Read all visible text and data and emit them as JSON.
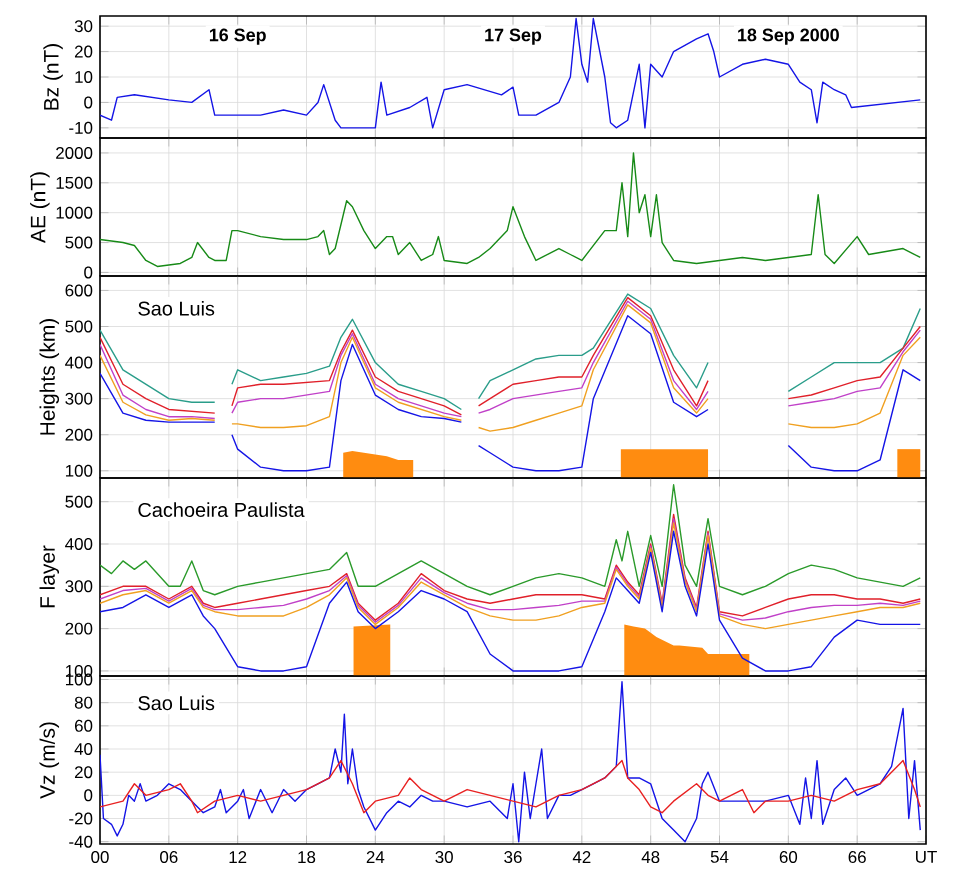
{
  "chart_data": [
    {
      "type": "line",
      "ylabel": "Bz (nT)",
      "xlim": [
        0,
        72
      ],
      "ylim": [
        -14,
        34
      ],
      "grid": true,
      "tick_labels": "y",
      "xticks": [
        {
          "value": 0,
          "label": null
        },
        {
          "value": 6,
          "label": null
        },
        {
          "value": 12,
          "label": null
        },
        {
          "value": 18,
          "label": null
        },
        {
          "value": 24,
          "label": null
        },
        {
          "value": 30,
          "label": null
        },
        {
          "value": 36,
          "label": null
        },
        {
          "value": 42,
          "label": null
        },
        {
          "value": 48,
          "label": null
        },
        {
          "value": 54,
          "label": null
        },
        {
          "value": 60,
          "label": null
        },
        {
          "value": 66,
          "label": null
        },
        {
          "value": 72,
          "label": null
        }
      ],
      "yticks": [
        -10,
        0,
        10,
        20,
        30
      ],
      "annotations": [
        "16 Sep",
        "17 Sep",
        "18 Sep 2000"
      ],
      "series": [
        {
          "color": "#1414e6",
          "x": [
            0,
            1,
            1.5,
            3,
            6,
            8,
            9.5,
            10,
            12,
            14,
            16,
            18,
            19,
            19.5,
            20.5,
            21,
            24,
            24.5,
            25,
            27,
            28.5,
            29,
            30,
            32,
            35,
            36,
            36.5,
            38,
            40,
            41,
            41.5,
            42,
            42.5,
            43,
            44,
            44.5,
            45,
            46,
            47,
            47.5,
            48,
            49,
            50,
            52,
            53,
            53.5,
            54,
            56,
            58,
            60,
            61,
            62,
            62.5,
            63,
            64,
            65,
            65.5,
            71.5
          ],
          "values": [
            -5,
            -7,
            2,
            3,
            1,
            0,
            5,
            -5,
            -5,
            -5,
            -3,
            -5,
            0,
            7,
            -7,
            -10,
            -10,
            8,
            -5,
            -2,
            2,
            -10,
            5,
            7,
            3,
            6,
            -5,
            -5,
            0,
            10,
            33,
            15,
            8,
            33,
            10,
            -8,
            -10,
            -7,
            15,
            -10,
            15,
            10,
            20,
            25,
            27,
            20,
            10,
            15,
            17,
            15,
            8,
            5,
            -8,
            8,
            5,
            3,
            -2,
            1
          ]
        }
      ]
    },
    {
      "type": "line",
      "ylabel": "AE (nT)",
      "xlim": [
        0,
        72
      ],
      "ylim": [
        -60,
        2250
      ],
      "grid": true,
      "tick_labels": "y",
      "xticks": [
        {
          "value": 0,
          "label": null
        },
        {
          "value": 6,
          "label": null
        },
        {
          "value": 12,
          "label": null
        },
        {
          "value": 18,
          "label": null
        },
        {
          "value": 24,
          "label": null
        },
        {
          "value": 30,
          "label": null
        },
        {
          "value": 36,
          "label": null
        },
        {
          "value": 42,
          "label": null
        },
        {
          "value": 48,
          "label": null
        },
        {
          "value": 54,
          "label": null
        },
        {
          "value": 60,
          "label": null
        },
        {
          "value": 66,
          "label": null
        },
        {
          "value": 72,
          "label": null
        }
      ],
      "yticks": [
        0,
        500,
        1000,
        1500,
        2000
      ],
      "series": [
        {
          "color": "#178a17",
          "x": [
            0,
            2,
            3,
            4,
            5,
            7,
            8,
            8.5,
            9.5,
            10,
            11,
            11.5,
            12,
            14,
            16,
            18,
            19,
            19.5,
            20,
            20.5,
            21.5,
            22,
            23,
            24,
            25,
            25.5,
            26,
            27,
            28,
            29,
            29.5,
            30,
            32,
            33,
            34,
            35.5,
            36,
            37,
            38,
            40,
            41,
            42,
            44,
            45,
            45.5,
            46,
            46.5,
            47,
            47.5,
            48,
            48.5,
            49,
            50,
            52,
            54,
            56,
            58,
            60,
            62,
            62.6,
            63.2,
            64,
            66,
            67,
            70,
            71.5
          ],
          "values": [
            550,
            500,
            450,
            200,
            100,
            150,
            250,
            500,
            250,
            200,
            200,
            700,
            700,
            600,
            550,
            550,
            600,
            700,
            300,
            400,
            1200,
            1100,
            700,
            400,
            600,
            600,
            300,
            500,
            200,
            300,
            600,
            200,
            150,
            250,
            400,
            700,
            1100,
            600,
            200,
            400,
            300,
            200,
            700,
            700,
            1500,
            600,
            2000,
            1000,
            1300,
            600,
            1300,
            500,
            200,
            150,
            200,
            250,
            200,
            250,
            300,
            1300,
            300,
            150,
            600,
            300,
            400,
            250
          ]
        }
      ]
    },
    {
      "type": "line",
      "title": "Sao Luis",
      "ylabel": "Heights (km)",
      "xlim": [
        0,
        72
      ],
      "ylim": [
        80,
        640
      ],
      "grid": true,
      "tick_labels": "y",
      "xticks": [
        {
          "value": 0,
          "label": null
        },
        {
          "value": 6,
          "label": null
        },
        {
          "value": 12,
          "label": null
        },
        {
          "value": 18,
          "label": null
        },
        {
          "value": 24,
          "label": null
        },
        {
          "value": 30,
          "label": null
        },
        {
          "value": 36,
          "label": null
        },
        {
          "value": 42,
          "label": null
        },
        {
          "value": 48,
          "label": null
        },
        {
          "value": 54,
          "label": null
        },
        {
          "value": 60,
          "label": null
        },
        {
          "value": 66,
          "label": null
        },
        {
          "value": 72,
          "label": null
        }
      ],
      "yticks": [
        100,
        200,
        300,
        400,
        500,
        600
      ],
      "series": [
        {
          "type": "area",
          "color": "#ff8c10",
          "x": [
            21.2,
            22,
            23,
            24,
            25,
            26,
            27.3
          ],
          "values": [
            150,
            155,
            150,
            145,
            140,
            130,
            130
          ]
        },
        {
          "type": "area",
          "color": "#ff8c10",
          "x": [
            45.4,
            47,
            49,
            51,
            53
          ],
          "values": [
            160,
            160,
            160,
            160,
            160
          ]
        },
        {
          "type": "area",
          "color": "#ff8c10",
          "x": [
            69.5,
            71.5
          ],
          "values": [
            160,
            160
          ]
        },
        {
          "color": "#2a9d8a",
          "x": [
            0,
            2,
            4,
            6,
            8,
            10,
            10.7,
            11.5,
            12,
            14,
            16,
            18,
            20,
            21,
            22,
            24,
            26,
            28,
            30,
            31.5,
            32.3,
            33,
            34,
            36,
            38,
            40,
            42,
            43,
            46,
            48,
            50,
            52,
            53,
            56,
            60,
            62,
            64,
            66,
            68,
            70,
            71.5
          ],
          "values": [
            490,
            380,
            340,
            300,
            290,
            290,
            null,
            340,
            380,
            350,
            360,
            370,
            390,
            470,
            520,
            400,
            340,
            320,
            300,
            270,
            null,
            300,
            350,
            380,
            410,
            420,
            420,
            440,
            590,
            550,
            420,
            330,
            400,
            null,
            320,
            360,
            400,
            400,
            400,
            440,
            550
          ]
        },
        {
          "color": "#e0202a",
          "x": [
            0,
            2,
            4,
            6,
            8,
            10,
            10.7,
            11.5,
            12,
            14,
            16,
            18,
            20,
            21,
            22,
            24,
            26,
            28,
            30,
            31.5,
            32.3,
            33,
            34,
            36,
            38,
            40,
            42,
            43,
            46,
            48,
            50,
            52,
            53,
            56,
            60,
            62,
            64,
            66,
            68,
            70,
            71.5
          ],
          "values": [
            470,
            340,
            300,
            270,
            265,
            260,
            null,
            280,
            330,
            340,
            340,
            345,
            350,
            430,
            490,
            360,
            320,
            300,
            280,
            255,
            null,
            280,
            300,
            340,
            350,
            360,
            360,
            420,
            580,
            530,
            380,
            280,
            350,
            null,
            300,
            310,
            330,
            350,
            360,
            440,
            500
          ]
        },
        {
          "color": "#c040c8",
          "x": [
            0,
            2,
            4,
            6,
            8,
            10,
            10.7,
            11.5,
            12,
            14,
            16,
            18,
            20,
            21,
            22,
            24,
            26,
            28,
            30,
            31.5,
            32.3,
            33,
            34,
            36,
            38,
            40,
            42,
            43,
            46,
            48,
            50,
            52,
            53,
            56,
            60,
            62,
            64,
            66,
            68,
            70,
            71.5
          ],
          "values": [
            450,
            310,
            270,
            250,
            250,
            245,
            null,
            260,
            290,
            300,
            300,
            310,
            320,
            420,
            480,
            340,
            300,
            280,
            260,
            250,
            null,
            260,
            270,
            300,
            310,
            320,
            330,
            400,
            570,
            520,
            350,
            270,
            320,
            null,
            280,
            290,
            300,
            320,
            330,
            430,
            490
          ]
        },
        {
          "color": "#f0a020",
          "x": [
            0,
            2,
            4,
            6,
            8,
            10,
            10.7,
            11.5,
            12,
            14,
            16,
            18,
            20,
            21,
            22,
            24,
            26,
            28,
            30,
            31.5,
            32.3,
            33,
            34,
            36,
            38,
            40,
            42,
            43,
            46,
            48,
            50,
            52,
            53,
            56,
            60,
            62,
            64,
            66,
            68,
            70,
            71.5
          ],
          "values": [
            420,
            290,
            255,
            240,
            245,
            240,
            null,
            230,
            230,
            220,
            220,
            225,
            250,
            400,
            470,
            330,
            290,
            270,
            250,
            240,
            null,
            220,
            210,
            220,
            240,
            260,
            280,
            380,
            560,
            510,
            330,
            260,
            300,
            null,
            230,
            220,
            220,
            230,
            260,
            420,
            470
          ]
        },
        {
          "color": "#1414e6",
          "x": [
            0,
            2,
            4,
            6,
            8,
            10,
            10.7,
            11.5,
            12,
            14,
            16,
            18,
            20,
            21,
            22,
            24,
            26,
            28,
            30,
            31.5,
            32.3,
            33,
            34,
            36,
            38,
            40,
            42,
            43,
            46,
            48,
            50,
            52,
            53,
            56,
            60,
            62,
            64,
            66,
            68,
            70,
            71.5
          ],
          "values": [
            370,
            260,
            240,
            235,
            235,
            235,
            null,
            200,
            160,
            110,
            100,
            100,
            110,
            350,
            450,
            310,
            270,
            250,
            245,
            235,
            null,
            170,
            150,
            110,
            100,
            100,
            110,
            300,
            530,
            480,
            290,
            250,
            270,
            null,
            170,
            110,
            100,
            100,
            130,
            380,
            350
          ]
        }
      ]
    },
    {
      "type": "line",
      "title": "Cachoeira Paulista",
      "ylabel": "F layer",
      "xlim": [
        0,
        72
      ],
      "ylim": [
        88,
        556
      ],
      "grid": true,
      "tick_labels": "y",
      "xticks": [
        {
          "value": 0,
          "label": null
        },
        {
          "value": 6,
          "label": null
        },
        {
          "value": 12,
          "label": null
        },
        {
          "value": 18,
          "label": null
        },
        {
          "value": 24,
          "label": null
        },
        {
          "value": 30,
          "label": null
        },
        {
          "value": 36,
          "label": null
        },
        {
          "value": 42,
          "label": null
        },
        {
          "value": 48,
          "label": null
        },
        {
          "value": 54,
          "label": null
        },
        {
          "value": 60,
          "label": null
        },
        {
          "value": 66,
          "label": null
        },
        {
          "value": 72,
          "label": null
        }
      ],
      "yticks": [
        100,
        200,
        300,
        400,
        500
      ],
      "series": [
        {
          "type": "area",
          "color": "#ff8c10",
          "x": [
            22.1,
            25.3
          ],
          "values": [
            205,
            210
          ]
        },
        {
          "type": "area",
          "color": "#ff8c10",
          "x": [
            45.7,
            46.5,
            47.5,
            48,
            48.5,
            50,
            50.5,
            52.5,
            53,
            56.6
          ],
          "values": [
            210,
            205,
            200,
            190,
            180,
            160,
            160,
            155,
            140,
            140
          ]
        },
        {
          "color": "#2a9a2a",
          "x": [
            0,
            1,
            2,
            3,
            4,
            6,
            7,
            8,
            9,
            10,
            12,
            14,
            16,
            18,
            20,
            21.5,
            22.5,
            24,
            26,
            28,
            30,
            32,
            34,
            36,
            38,
            40,
            42,
            44,
            45,
            45.5,
            46,
            47,
            48,
            49,
            50,
            51,
            52,
            53,
            54,
            56,
            58,
            60,
            62,
            64,
            66,
            68,
            70,
            71.5
          ],
          "values": [
            350,
            330,
            360,
            340,
            360,
            300,
            300,
            360,
            290,
            280,
            300,
            310,
            320,
            330,
            340,
            380,
            300,
            300,
            330,
            360,
            330,
            300,
            280,
            300,
            320,
            330,
            320,
            300,
            410,
            360,
            430,
            300,
            420,
            300,
            540,
            350,
            300,
            460,
            300,
            280,
            300,
            330,
            350,
            340,
            320,
            310,
            300,
            320
          ]
        },
        {
          "color": "#e0202a",
          "x": [
            0,
            2,
            4,
            6,
            8,
            9,
            10,
            12,
            14,
            16,
            18,
            20,
            21.5,
            22.5,
            24,
            26,
            28,
            30,
            32,
            34,
            36,
            38,
            40,
            42,
            44,
            45,
            46,
            47,
            48,
            49,
            50,
            51,
            52,
            53,
            54,
            56,
            58,
            60,
            62,
            64,
            66,
            68,
            70,
            71.5
          ],
          "values": [
            280,
            300,
            300,
            270,
            300,
            260,
            250,
            260,
            270,
            280,
            290,
            300,
            330,
            260,
            220,
            260,
            330,
            290,
            270,
            260,
            270,
            280,
            280,
            280,
            270,
            350,
            310,
            280,
            400,
            260,
            470,
            320,
            250,
            430,
            240,
            230,
            250,
            270,
            280,
            280,
            270,
            270,
            260,
            270
          ]
        },
        {
          "color": "#c040c8",
          "x": [
            0,
            2,
            4,
            6,
            8,
            9,
            10,
            12,
            14,
            16,
            18,
            20,
            21.5,
            22.5,
            24,
            26,
            28,
            30,
            32,
            34,
            36,
            38,
            40,
            42,
            44,
            45,
            46,
            47,
            48,
            49,
            50,
            51,
            52,
            53,
            54,
            56,
            58,
            60,
            62,
            64,
            66,
            68,
            70,
            71.5
          ],
          "values": [
            270,
            290,
            295,
            265,
            295,
            255,
            245,
            245,
            250,
            255,
            270,
            290,
            325,
            255,
            215,
            255,
            320,
            285,
            260,
            245,
            245,
            250,
            255,
            265,
            265,
            345,
            305,
            275,
            395,
            255,
            460,
            315,
            245,
            425,
            235,
            220,
            225,
            240,
            250,
            255,
            255,
            260,
            255,
            265
          ]
        },
        {
          "color": "#f0a020",
          "x": [
            0,
            2,
            4,
            6,
            8,
            9,
            10,
            12,
            14,
            16,
            18,
            20,
            21.5,
            22.5,
            24,
            26,
            28,
            30,
            32,
            34,
            36,
            38,
            40,
            42,
            44,
            45,
            46,
            47,
            48,
            49,
            50,
            51,
            52,
            53,
            54,
            56,
            58,
            60,
            62,
            64,
            66,
            68,
            70,
            71.5
          ],
          "values": [
            260,
            280,
            290,
            260,
            290,
            250,
            240,
            230,
            230,
            230,
            250,
            280,
            320,
            250,
            210,
            250,
            310,
            280,
            250,
            230,
            220,
            220,
            230,
            250,
            260,
            340,
            300,
            270,
            390,
            250,
            450,
            310,
            240,
            420,
            230,
            210,
            200,
            210,
            220,
            230,
            240,
            250,
            250,
            260
          ]
        },
        {
          "color": "#1414e6",
          "x": [
            0,
            2,
            4,
            6,
            8,
            9,
            10,
            12,
            14,
            16,
            18,
            20,
            21.5,
            22.5,
            24,
            26,
            28,
            30,
            32,
            34,
            36,
            38,
            40,
            42,
            44,
            45,
            46,
            47,
            48,
            49,
            50,
            51,
            52,
            53,
            54,
            56,
            58,
            60,
            62,
            64,
            66,
            68,
            70,
            71.5
          ],
          "values": [
            240,
            250,
            280,
            250,
            280,
            230,
            200,
            110,
            100,
            100,
            110,
            260,
            310,
            240,
            200,
            240,
            290,
            270,
            240,
            140,
            100,
            100,
            100,
            110,
            240,
            320,
            290,
            260,
            380,
            240,
            430,
            300,
            230,
            400,
            220,
            130,
            100,
            100,
            110,
            180,
            220,
            210,
            210,
            210
          ]
        }
      ]
    },
    {
      "type": "line",
      "title": "Sao Luis",
      "ylabel": "Vz (m/s)",
      "xlim": [
        0,
        72
      ],
      "ylim": [
        -42,
        103
      ],
      "grid": true,
      "xticks": [
        {
          "value": 0,
          "label": "00"
        },
        {
          "value": 6,
          "label": "06"
        },
        12,
        18,
        24,
        30,
        36,
        42,
        48,
        54,
        60,
        66,
        {
          "value": 72,
          "label": "UT"
        }
      ],
      "yticks": [
        -40,
        -20,
        0,
        20,
        40,
        60,
        80,
        100
      ],
      "series": [
        {
          "color": "#1414e6",
          "x": [
            0,
            0.3,
            1,
            1.5,
            2,
            2.5,
            3,
            3.5,
            4,
            5,
            6,
            7,
            8,
            9,
            10,
            10.5,
            11,
            12,
            12.5,
            13,
            14,
            15,
            16,
            17,
            18,
            19,
            20,
            20.5,
            21,
            21.3,
            21.6,
            22,
            22.5,
            23,
            24,
            25,
            26,
            27,
            28,
            29,
            30,
            32,
            34,
            35.5,
            36,
            36.5,
            37,
            37.5,
            38,
            38.5,
            39,
            40,
            41,
            42,
            43,
            44,
            45,
            45.5,
            46,
            47,
            48,
            49,
            50,
            51,
            52,
            52.5,
            53,
            54,
            58,
            60,
            61,
            61.5,
            62,
            62.5,
            63,
            64,
            65,
            66,
            67,
            68,
            69,
            70,
            70.5,
            71,
            71.5
          ],
          "values": [
            35,
            -20,
            -25,
            -35,
            -25,
            0,
            -5,
            10,
            -5,
            0,
            10,
            5,
            -5,
            -15,
            -10,
            5,
            -15,
            -5,
            5,
            -20,
            5,
            -15,
            5,
            -5,
            5,
            10,
            15,
            40,
            20,
            70,
            10,
            40,
            5,
            -10,
            -30,
            -15,
            -5,
            -10,
            0,
            -5,
            -5,
            -10,
            -5,
            -20,
            10,
            -40,
            20,
            -20,
            10,
            40,
            -20,
            0,
            0,
            5,
            10,
            15,
            25,
            98,
            15,
            15,
            10,
            -20,
            -30,
            -40,
            -20,
            10,
            20,
            -5,
            -5,
            0,
            -25,
            15,
            -20,
            30,
            -25,
            5,
            15,
            0,
            5,
            10,
            25,
            75,
            -20,
            30,
            -30
          ]
        },
        {
          "color": "#e82020",
          "x": [
            0,
            2,
            3,
            4,
            6,
            7,
            8,
            8.5,
            10,
            12,
            14,
            16,
            18,
            20,
            21,
            22,
            23,
            24,
            26,
            27,
            28,
            30,
            32,
            34,
            36,
            38,
            40,
            42,
            44,
            45.5,
            46,
            47,
            48,
            49,
            50,
            52,
            53,
            54,
            56,
            57,
            58,
            60,
            62,
            64,
            66,
            68,
            70,
            71,
            71.5
          ],
          "values": [
            -10,
            -5,
            10,
            0,
            5,
            10,
            -5,
            -15,
            -5,
            0,
            -5,
            0,
            5,
            15,
            30,
            10,
            -15,
            -5,
            0,
            15,
            5,
            -5,
            5,
            0,
            -5,
            -10,
            0,
            5,
            15,
            30,
            15,
            5,
            -10,
            -15,
            -5,
            10,
            0,
            -5,
            5,
            -15,
            -5,
            -5,
            0,
            -5,
            5,
            10,
            30,
            5,
            -10
          ]
        }
      ]
    }
  ]
}
